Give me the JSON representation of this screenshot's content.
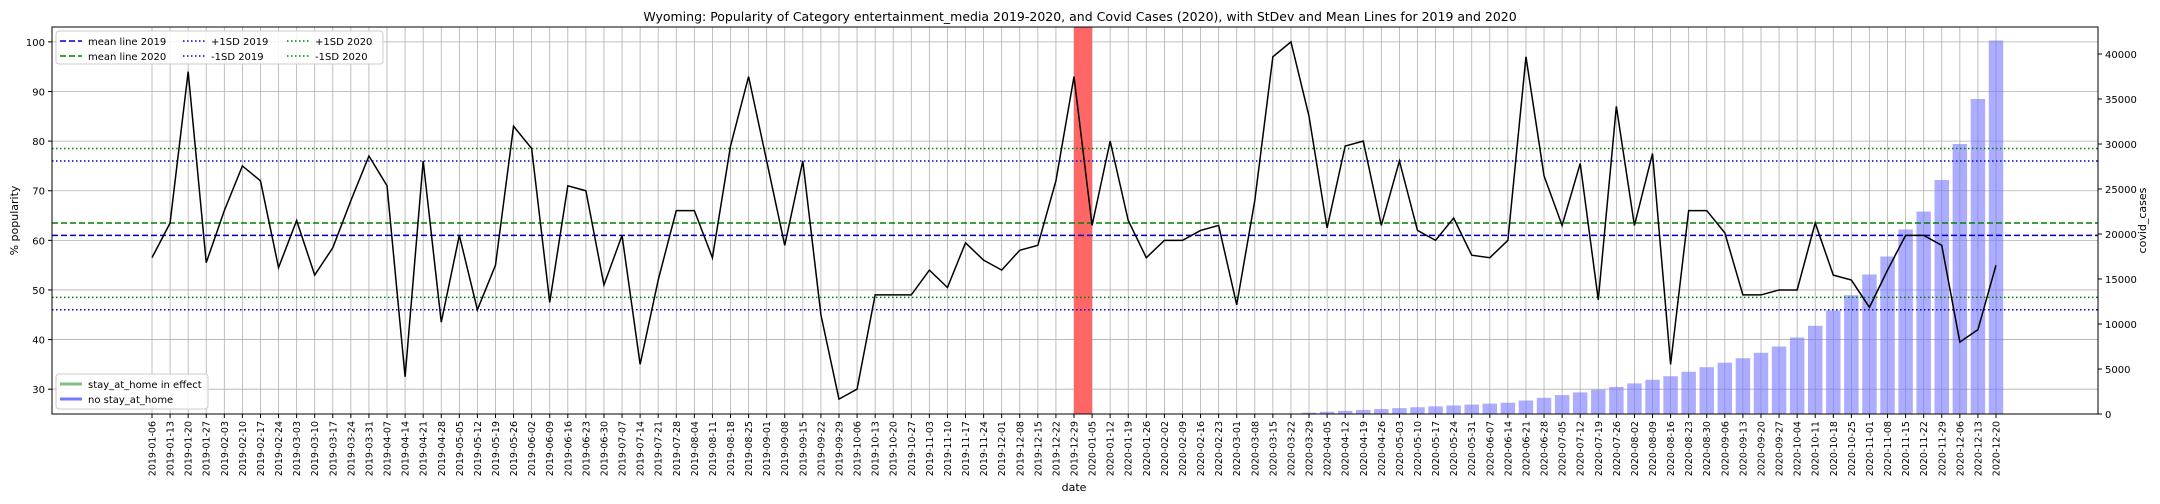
{
  "chart_data": {
    "type": "line",
    "title": "Wyoming: Popularity of Category entertainment_media 2019-2020, and Covid Cases (2020), with StDev and Mean Lines for 2019 and 2020",
    "xlabel": "date",
    "ylabel": "% popularity",
    "y2label": "covid_cases",
    "ylim": [
      25,
      103
    ],
    "y2lim": [
      0,
      43000
    ],
    "yticks": [
      30,
      40,
      50,
      60,
      70,
      80,
      90,
      100
    ],
    "y2ticks": [
      0,
      5000,
      10000,
      15000,
      20000,
      25000,
      30000,
      35000,
      40000
    ],
    "grid": true,
    "legend_top_placement": "upper-left",
    "legend_bottom_placement": "lower-left",
    "x": [
      "2019-01-06",
      "2019-01-13",
      "2019-01-20",
      "2019-01-27",
      "2019-02-03",
      "2019-02-10",
      "2019-02-17",
      "2019-02-24",
      "2019-03-03",
      "2019-03-10",
      "2019-03-17",
      "2019-03-24",
      "2019-03-31",
      "2019-04-07",
      "2019-04-14",
      "2019-04-21",
      "2019-04-28",
      "2019-05-05",
      "2019-05-12",
      "2019-05-19",
      "2019-05-26",
      "2019-06-02",
      "2019-06-09",
      "2019-06-16",
      "2019-06-23",
      "2019-06-30",
      "2019-07-07",
      "2019-07-14",
      "2019-07-21",
      "2019-07-28",
      "2019-08-04",
      "2019-08-11",
      "2019-08-18",
      "2019-08-25",
      "2019-09-01",
      "2019-09-08",
      "2019-09-15",
      "2019-09-22",
      "2019-09-29",
      "2019-10-06",
      "2019-10-13",
      "2019-10-20",
      "2019-10-27",
      "2019-11-03",
      "2019-11-10",
      "2019-11-17",
      "2019-11-24",
      "2019-12-01",
      "2019-12-08",
      "2019-12-15",
      "2019-12-22",
      "2019-12-29",
      "2020-01-05",
      "2020-01-12",
      "2020-01-19",
      "2020-01-26",
      "2020-02-02",
      "2020-02-09",
      "2020-02-16",
      "2020-02-23",
      "2020-03-01",
      "2020-03-08",
      "2020-03-15",
      "2020-03-22",
      "2020-03-29",
      "2020-04-05",
      "2020-04-12",
      "2020-04-19",
      "2020-04-26",
      "2020-05-03",
      "2020-05-10",
      "2020-05-17",
      "2020-05-24",
      "2020-05-31",
      "2020-06-07",
      "2020-06-14",
      "2020-06-21",
      "2020-06-28",
      "2020-07-05",
      "2020-07-12",
      "2020-07-19",
      "2020-07-26",
      "2020-08-02",
      "2020-08-09",
      "2020-08-16",
      "2020-08-23",
      "2020-08-30",
      "2020-09-06",
      "2020-09-13",
      "2020-09-20",
      "2020-09-27",
      "2020-10-04",
      "2020-10-11",
      "2020-10-18",
      "2020-10-25",
      "2020-11-01",
      "2020-11-08",
      "2020-11-15",
      "2020-11-22",
      "2020-11-29",
      "2020-12-06",
      "2020-12-13",
      "2020-12-20"
    ],
    "series": [
      {
        "name": "",
        "color": "#000000",
        "values": [
          56.5,
          63.5,
          94,
          55.5,
          66,
          75,
          72,
          54.5,
          64,
          53,
          58.5,
          68,
          77,
          71,
          32.5,
          76,
          43.5,
          61,
          46,
          55,
          83,
          78.5,
          47.5,
          71,
          70,
          51,
          61,
          35,
          52,
          66,
          66,
          56.5,
          79,
          93,
          76,
          59,
          76,
          45,
          28,
          30,
          49,
          49,
          49,
          54,
          50.5,
          59.5,
          56,
          54,
          58,
          59,
          72,
          93,
          63,
          80,
          64,
          56.5,
          60,
          60,
          62,
          63,
          47,
          68,
          97,
          100,
          85,
          62.5,
          79,
          80,
          63,
          76,
          62,
          60,
          64.5,
          57,
          56.5,
          60,
          97,
          73,
          63,
          75.5,
          48,
          87,
          63,
          77.5,
          35,
          66,
          66,
          61.5,
          49,
          49,
          50,
          50,
          63.5,
          53,
          52,
          46.5,
          54,
          61,
          61,
          59,
          39.5,
          42,
          55
        ]
      }
    ],
    "covid_cases": [
      0,
      0,
      0,
      0,
      0,
      0,
      0,
      0,
      0,
      0,
      0,
      0,
      0,
      0,
      0,
      0,
      0,
      0,
      0,
      0,
      0,
      0,
      0,
      0,
      0,
      0,
      0,
      0,
      0,
      0,
      0,
      0,
      0,
      0,
      0,
      0,
      0,
      0,
      0,
      0,
      0,
      0,
      0,
      0,
      0,
      0,
      0,
      0,
      0,
      0,
      0,
      0,
      0,
      0,
      0,
      0,
      0,
      0,
      0,
      0,
      0,
      0,
      0,
      50,
      150,
      250,
      350,
      450,
      550,
      650,
      750,
      850,
      950,
      1050,
      1150,
      1250,
      1500,
      1800,
      2100,
      2400,
      2700,
      3000,
      3400,
      3800,
      4200,
      4700,
      5200,
      5700,
      6200,
      6800,
      7500,
      8500,
      9800,
      11500,
      13200,
      15500,
      17500,
      20500,
      22500,
      26000,
      30000,
      35000,
      41500
    ],
    "covid_bar_color": "#7777ff",
    "stay_at_home_span": [
      "2019-12-29",
      "2020-01-05"
    ],
    "stay_at_home_color": "#ff6666",
    "mean_2019": 61,
    "mean_2020": 63.5,
    "plus1sd_2019": 76,
    "minus1sd_2019": 46,
    "plus1sd_2020": 78.5,
    "minus1sd_2020": 48.5,
    "color_2019": "#0000cc",
    "color_2020": "#008000",
    "legend_top": [
      {
        "label": "mean line 2019",
        "color": "#0000cc",
        "dash": "dashed"
      },
      {
        "label": "mean line 2020",
        "color": "#008000",
        "dash": "dashed"
      },
      {
        "label": "+1SD 2019",
        "color": "#0000cc",
        "dash": "dotted"
      },
      {
        "label": "-1SD 2019",
        "color": "#0000cc",
        "dash": "dotted"
      },
      {
        "label": "+1SD 2020",
        "color": "#008000",
        "dash": "dotted"
      },
      {
        "label": "-1SD 2020",
        "color": "#008000",
        "dash": "dotted"
      }
    ],
    "legend_bottom": [
      {
        "label": "stay_at_home in effect",
        "color": "#7fbf7f"
      },
      {
        "label": "no stay_at_home",
        "color": "#7777ff"
      }
    ]
  }
}
